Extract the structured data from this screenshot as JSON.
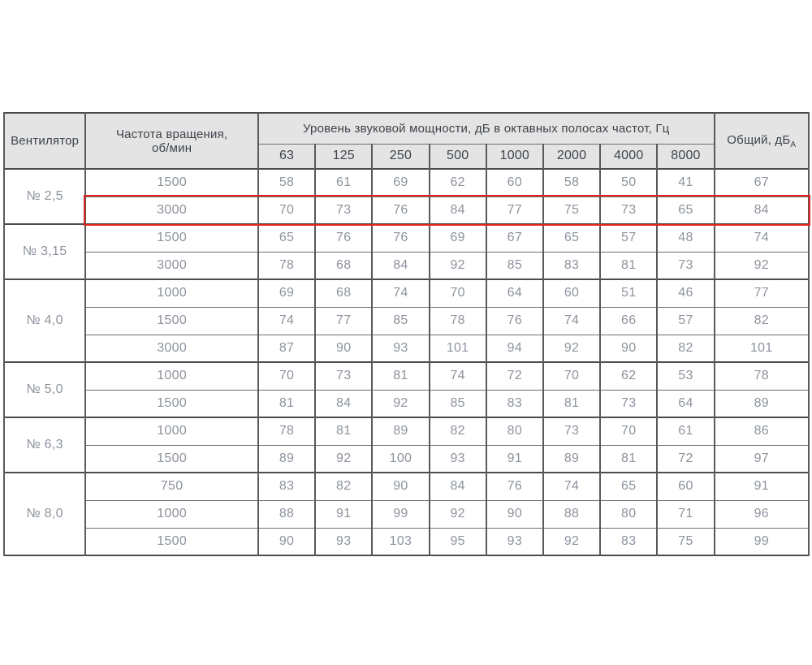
{
  "table": {
    "header": {
      "fan": "Вентилятор",
      "speed_line1": "Частота вращения,",
      "speed_line2": "об/мин",
      "octave_title": "Уровень звуковой мощности, дБ в октавных полосах частот, Гц",
      "frequencies": [
        "63",
        "125",
        "250",
        "500",
        "1000",
        "2000",
        "4000",
        "8000"
      ],
      "total_label": "Общий, дБ",
      "total_sub": "А"
    },
    "groups": [
      {
        "fan": "№ 2,5",
        "rows": [
          {
            "rpm": "1500",
            "levels": [
              58,
              61,
              69,
              62,
              60,
              58,
              50,
              41
            ],
            "total": 67
          },
          {
            "rpm": "3000",
            "levels": [
              70,
              73,
              76,
              84,
              77,
              75,
              73,
              65
            ],
            "total": 84,
            "highlighted": true
          }
        ]
      },
      {
        "fan": "№ 3,15",
        "rows": [
          {
            "rpm": "1500",
            "levels": [
              65,
              76,
              76,
              69,
              67,
              65,
              57,
              48
            ],
            "total": 74
          },
          {
            "rpm": "3000",
            "levels": [
              78,
              68,
              84,
              92,
              85,
              83,
              81,
              73
            ],
            "total": 92
          }
        ]
      },
      {
        "fan": "№ 4,0",
        "rows": [
          {
            "rpm": "1000",
            "levels": [
              69,
              68,
              74,
              70,
              64,
              60,
              51,
              46
            ],
            "total": 77
          },
          {
            "rpm": "1500",
            "levels": [
              74,
              77,
              85,
              78,
              76,
              74,
              66,
              57
            ],
            "total": 82
          },
          {
            "rpm": "3000",
            "levels": [
              87,
              90,
              93,
              101,
              94,
              92,
              90,
              82
            ],
            "total": 101
          }
        ]
      },
      {
        "fan": "№ 5,0",
        "rows": [
          {
            "rpm": "1000",
            "levels": [
              70,
              73,
              81,
              74,
              72,
              70,
              62,
              53
            ],
            "total": 78
          },
          {
            "rpm": "1500",
            "levels": [
              81,
              84,
              92,
              85,
              83,
              81,
              73,
              64
            ],
            "total": 89
          }
        ]
      },
      {
        "fan": "№ 6,3",
        "rows": [
          {
            "rpm": "1000",
            "levels": [
              78,
              81,
              89,
              82,
              80,
              73,
              70,
              61
            ],
            "total": 86
          },
          {
            "rpm": "1500",
            "levels": [
              89,
              92,
              100,
              93,
              91,
              89,
              81,
              72
            ],
            "total": 97
          }
        ]
      },
      {
        "fan": "№ 8,0",
        "rows": [
          {
            "rpm": "750",
            "levels": [
              83,
              82,
              90,
              84,
              76,
              74,
              65,
              60
            ],
            "total": 91
          },
          {
            "rpm": "1000",
            "levels": [
              88,
              91,
              99,
              92,
              90,
              88,
              80,
              71
            ],
            "total": 96
          },
          {
            "rpm": "1500",
            "levels": [
              90,
              93,
              103,
              95,
              93,
              92,
              83,
              75
            ],
            "total": 99
          }
        ]
      }
    ],
    "colors": {
      "highlight_border": "#e3251f",
      "header_background": "#e4e4e4",
      "header_text": "#3e444c",
      "data_text": "#8d939d",
      "grid_line": "#5a5a5a"
    }
  }
}
